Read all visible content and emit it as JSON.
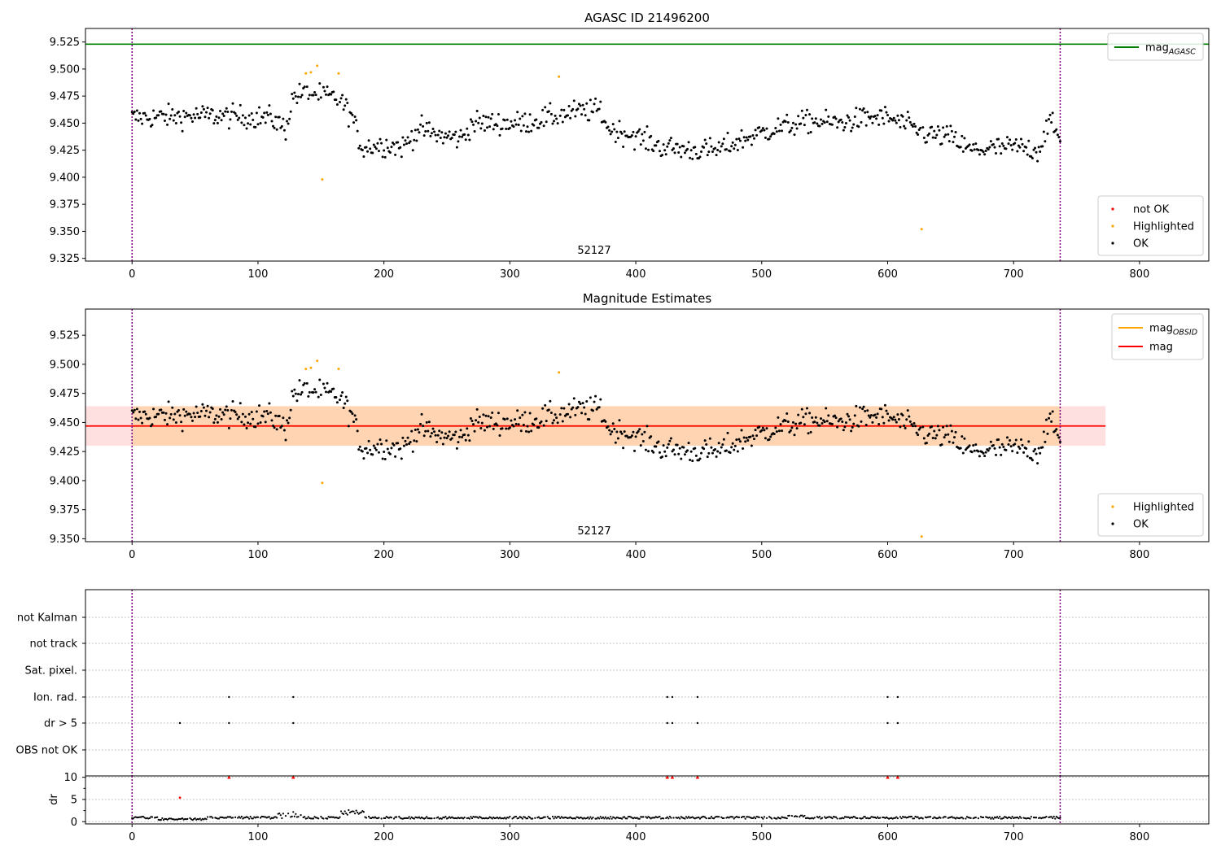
{
  "chart_data": [
    {
      "type": "scatter",
      "title": "AGASC ID 21496200",
      "xlim": [
        -37,
        855
      ],
      "ylim": [
        9.3225,
        9.5375
      ],
      "xticks": [
        0,
        100,
        200,
        300,
        400,
        500,
        600,
        700,
        800
      ],
      "yticks": [
        9.325,
        9.35,
        9.375,
        9.4,
        9.425,
        9.45,
        9.475,
        9.5,
        9.525
      ],
      "ytick_labels": [
        "9.325",
        "9.350",
        "9.375",
        "9.400",
        "9.425",
        "9.450",
        "9.475",
        "9.500",
        "9.525"
      ],
      "obsid_label": "52127",
      "obsid_label_x": 367,
      "obsid_boundaries": [
        0,
        737
      ],
      "lines": [
        {
          "name": "mag_AGASC",
          "label_main": "mag",
          "label_sub": "AGASC",
          "y": 9.523,
          "x": [
            -37,
            855
          ],
          "color": "#008000"
        }
      ],
      "highlighted": {
        "x": [
          138,
          142,
          147,
          151,
          164,
          339,
          627
        ],
        "y": [
          9.496,
          9.497,
          9.503,
          9.398,
          9.496,
          9.493,
          9.352
        ],
        "color": "#ffa500"
      },
      "ok": {
        "series": "OK",
        "n": 738,
        "generator": "lightcurve",
        "color": "#000000"
      },
      "legend_lines": [
        {
          "label": "mag",
          "sub": "AGASC",
          "color": "#008000"
        }
      ],
      "legend_points": [
        {
          "label": "not OK",
          "color": "#ff0000"
        },
        {
          "label": "Highlighted",
          "color": "#ffa500"
        },
        {
          "label": "OK",
          "color": "#000000"
        }
      ]
    },
    {
      "type": "scatter",
      "title": "Magnitude Estimates",
      "xlim": [
        -37,
        855
      ],
      "ylim": [
        9.3475,
        9.5475
      ],
      "xticks": [
        0,
        100,
        200,
        300,
        400,
        500,
        600,
        700,
        800
      ],
      "yticks": [
        9.35,
        9.375,
        9.4,
        9.425,
        9.45,
        9.475,
        9.5,
        9.525
      ],
      "ytick_labels": [
        "9.350",
        "9.375",
        "9.400",
        "9.425",
        "9.450",
        "9.475",
        "9.500",
        "9.525"
      ],
      "obsid_label": "52127",
      "obsid_label_x": 367,
      "obsid_boundaries": [
        0,
        737
      ],
      "mag": {
        "value": 9.447,
        "low": 9.43,
        "high": 9.464,
        "x": [
          -37,
          773
        ],
        "color": "#ff0000"
      },
      "mag_obsid": {
        "value": 9.447,
        "low": 9.43,
        "high": 9.464,
        "x": [
          0,
          737
        ],
        "color": "#ffa500"
      },
      "highlighted": {
        "x": [
          138,
          142,
          147,
          151,
          164,
          339,
          627
        ],
        "y": [
          9.496,
          9.497,
          9.503,
          9.398,
          9.496,
          9.493,
          9.352
        ],
        "color": "#ffa500"
      },
      "legend_lines": [
        {
          "label": "mag",
          "sub": "OBSID",
          "color": "#ffa500"
        },
        {
          "label": "mag",
          "sub": "",
          "color": "#ff0000"
        }
      ],
      "legend_points": [
        {
          "label": "Highlighted",
          "color": "#ffa500"
        },
        {
          "label": "OK",
          "color": "#000000"
        }
      ]
    },
    {
      "type": "scatter",
      "title": "",
      "xlim": [
        -37,
        855
      ],
      "categories": [
        "not Kalman",
        "not track",
        "Sat. pixel.",
        "Ion. rad.",
        "dr > 5",
        "OBS not OK"
      ],
      "flags": {
        "Ion. rad.": [
          77,
          128,
          425,
          429,
          449,
          600,
          608
        ],
        "dr > 5": [
          38,
          77,
          128,
          425,
          429,
          449,
          600,
          608
        ]
      },
      "obsid_boundaries": [
        0,
        737
      ],
      "grid": true
    },
    {
      "type": "scatter",
      "ylabel": "dr",
      "xlim": [
        -37,
        855
      ],
      "ylim": [
        -0.5,
        10.3
      ],
      "xticks": [
        0,
        100,
        200,
        300,
        400,
        500,
        600,
        700,
        800
      ],
      "yticks": [
        0,
        5,
        10
      ],
      "clipped_high": {
        "x": [
          77,
          128,
          425,
          429,
          449,
          600,
          608
        ],
        "y": [
          10,
          10,
          10,
          10,
          10,
          10,
          10
        ],
        "color": "#ff0000"
      },
      "outlier": {
        "x": [
          38
        ],
        "y": [
          5.4
        ],
        "color": "#ff0000"
      },
      "baseline": {
        "series": "dr",
        "n": 738,
        "typical": 0.9
      },
      "obsid_boundaries": [
        0,
        737
      ],
      "grid": true
    }
  ]
}
